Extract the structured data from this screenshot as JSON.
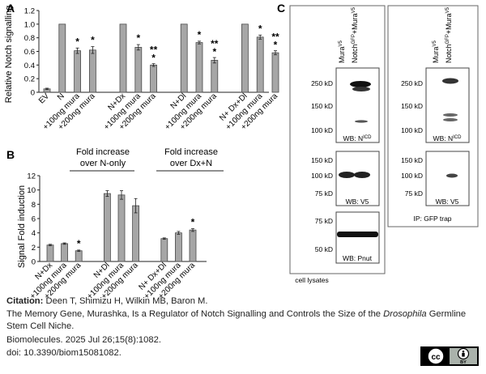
{
  "panel_labels": [
    "A",
    "B",
    "C"
  ],
  "chart_data": [
    {
      "type": "bar",
      "panel": "A",
      "ylabel": "Relative Notch signalling",
      "ylim": [
        0,
        1.2
      ],
      "yticks": [
        "0",
        "0.2",
        "0.4",
        "0.6",
        "0.8",
        "1.0",
        "1.2"
      ],
      "categories": [
        "EV",
        "N",
        "+100ng mura",
        "+200ng mura",
        "N+Dx",
        "+100ng mura",
        "+200ng mura",
        "N+Dl",
        "+100ng mura",
        "+200ng mura",
        "N+ Dx+Dl",
        "+100ng mura",
        "+200ng mura"
      ],
      "values": [
        0.05,
        1.0,
        0.61,
        0.62,
        1.0,
        0.66,
        0.4,
        1.0,
        0.73,
        0.47,
        1.0,
        0.81,
        0.58
      ],
      "errors": [
        0.01,
        0,
        0.04,
        0.05,
        0,
        0.04,
        0.02,
        0,
        0.02,
        0.04,
        0,
        0.03,
        0.03
      ],
      "significance": [
        "",
        "",
        "*",
        "*",
        "",
        "*",
        "**",
        "",
        "*",
        "**",
        "",
        "*",
        "**"
      ],
      "significance_second_row": [
        "",
        "",
        "",
        "",
        "",
        "",
        "*",
        "",
        "",
        "*",
        "",
        "",
        "*"
      ],
      "slots": [
        0,
        1,
        2,
        3,
        5,
        6,
        7,
        9,
        10,
        11,
        13,
        14,
        15
      ]
    },
    {
      "type": "bar",
      "panel": "B",
      "ylabel": "Signal  Fold induction",
      "ylim": [
        0,
        12
      ],
      "yticks": [
        "0",
        "2",
        "4",
        "6",
        "8",
        "10",
        "12"
      ],
      "categories": [
        "N+Dx",
        "+100ng mura",
        "+200ng mura",
        "N+Dl",
        "+100ng mura",
        "+200ng mura",
        "N+ Dx+Dl",
        "+100ng mura",
        "+200ng mura"
      ],
      "values": [
        2.3,
        2.5,
        1.5,
        9.5,
        9.3,
        7.8,
        3.2,
        4.0,
        4.4
      ],
      "errors": [
        0.1,
        0.1,
        0.1,
        0.4,
        0.6,
        1.0,
        0.1,
        0.2,
        0.2
      ],
      "significance": [
        "",
        "",
        "*",
        "",
        "",
        "",
        "",
        "",
        "*"
      ],
      "slots": [
        0,
        1,
        2,
        4,
        5,
        6,
        8,
        9,
        10
      ],
      "group_headers": [
        {
          "line1": "Fold increase",
          "line2": "over N-only"
        },
        {
          "line1": "Fold increase",
          "line2": "over Dx+N"
        }
      ]
    }
  ],
  "blots": {
    "lane_labels": [
      "Mura",
      "Notch",
      "+Mura"
    ],
    "lane_label_superscripts": [
      "V5",
      "GFP",
      "V5"
    ],
    "cell_lysates": {
      "caption": "cell lysates",
      "blot1": {
        "markers": [
          "250 kD",
          "150 kD",
          "100 kD"
        ],
        "wb": "WB: N",
        "wb_sup": "ICD"
      },
      "blot2": {
        "markers": [
          "150 kD",
          "100 kD",
          "75 kD"
        ],
        "wb": "WB: V5"
      },
      "blot3": {
        "markers": [
          "75 kD",
          "50 kD"
        ],
        "wb": "WB: Pnut"
      }
    },
    "ip": {
      "caption": "IP: GFP trap",
      "blot1": {
        "markers": [
          "250 kD",
          "150 kD",
          "100 kD"
        ],
        "wb": "WB: N",
        "wb_sup": "ICD"
      },
      "blot2": {
        "markers": [
          "150 kD",
          "100 kD",
          "75 kD"
        ],
        "wb": "WB: V5"
      }
    }
  },
  "citation": {
    "label": "Citation:",
    "authors": "Deen T, Shimizu H, Wilkin MB, Baron M.",
    "title_start": "The Memory Gene, Murashka, Is a Regulator of Notch Signalling and Controls the Size of the",
    "title_italic": "Drosophila",
    "title_end": "Germline",
    "title_line2": "Stem Cell Niche.",
    "journal": "Biomolecules. 2025 Jul 26;15(8):1082.",
    "doi": "doi: 10.3390/biom15081082."
  },
  "license": {
    "cc": "cc",
    "by": "BY"
  }
}
